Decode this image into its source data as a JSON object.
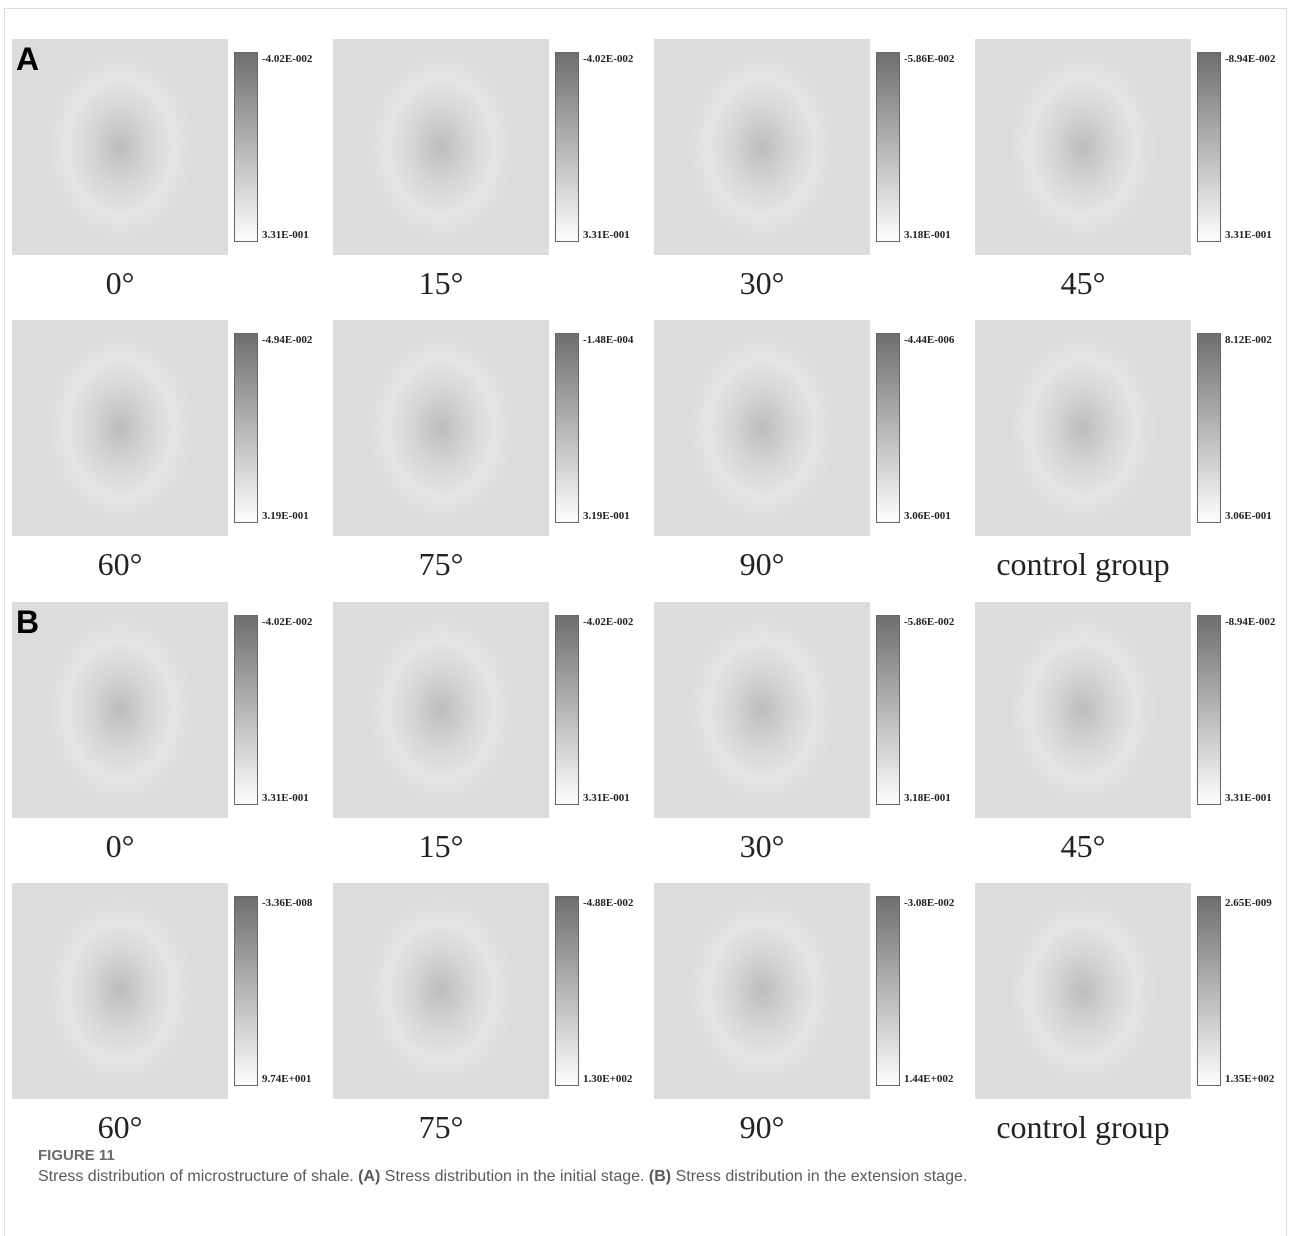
{
  "sections": [
    {
      "label": "A",
      "panels": [
        {
          "caption": "0°",
          "top": "-4.02E-002",
          "bottom": "3.31E-001"
        },
        {
          "caption": "15°",
          "top": "-4.02E-002",
          "bottom": "3.31E-001"
        },
        {
          "caption": "30°",
          "top": "-5.86E-002",
          "bottom": "3.18E-001"
        },
        {
          "caption": "45°",
          "top": "-8.94E-002",
          "bottom": "3.31E-001"
        },
        {
          "caption": "60°",
          "top": "-4.94E-002",
          "bottom": "3.19E-001"
        },
        {
          "caption": "75°",
          "top": "-1.48E-004",
          "bottom": "3.19E-001"
        },
        {
          "caption": "90°",
          "top": "-4.44E-006",
          "bottom": "3.06E-001"
        },
        {
          "caption": "control group",
          "top": "8.12E-002",
          "bottom": "3.06E-001"
        }
      ]
    },
    {
      "label": "B",
      "panels": [
        {
          "caption": "0°",
          "top": "-4.02E-002",
          "bottom": "3.31E-001"
        },
        {
          "caption": "15°",
          "top": "-4.02E-002",
          "bottom": "3.31E-001"
        },
        {
          "caption": "30°",
          "top": "-5.86E-002",
          "bottom": "3.18E-001"
        },
        {
          "caption": "45°",
          "top": "-8.94E-002",
          "bottom": "3.31E-001"
        },
        {
          "caption": "60°",
          "top": "-3.36E-008",
          "bottom": "9.74E+001"
        },
        {
          "caption": "75°",
          "top": "-4.88E-002",
          "bottom": "1.30E+002"
        },
        {
          "caption": "90°",
          "top": "-3.08E-002",
          "bottom": "1.44E+002"
        },
        {
          "caption": "control group",
          "top": "2.65E-009",
          "bottom": "1.35E+002"
        }
      ]
    }
  ],
  "figure": {
    "title": "FIGURE 11",
    "parts": [
      "Stress distribution of microstructure of shale. ",
      "(A)",
      " Stress distribution in the initial stage. ",
      "(B)",
      " Stress distribution in the extension stage."
    ]
  }
}
